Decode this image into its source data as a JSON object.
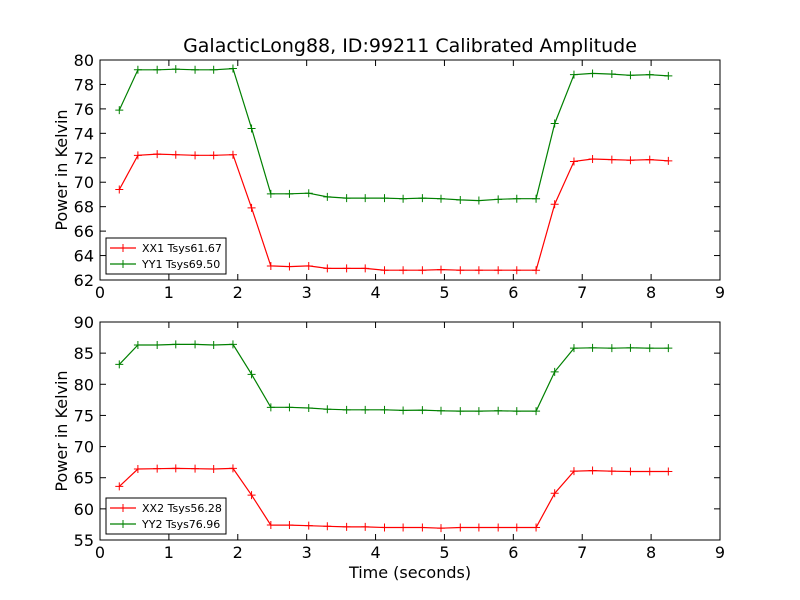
{
  "chart_data": [
    {
      "type": "line",
      "title": "GalacticLong88, ID:99211 Calibrated Amplitude",
      "xlabel": "",
      "ylabel": "Power in Kelvin",
      "xlim": [
        0,
        9
      ],
      "ylim": [
        62,
        80
      ],
      "xticks": [
        "0",
        "1",
        "2",
        "3",
        "4",
        "5",
        "6",
        "7",
        "8",
        "9"
      ],
      "yticks": [
        "62",
        "64",
        "66",
        "68",
        "70",
        "72",
        "74",
        "76",
        "78",
        "80"
      ],
      "legend_position": "lower-left",
      "grid": false,
      "x": [
        0.28,
        0.55,
        0.83,
        1.1,
        1.38,
        1.65,
        1.93,
        2.2,
        2.48,
        2.75,
        3.03,
        3.3,
        3.58,
        3.85,
        4.13,
        4.4,
        4.68,
        4.95,
        5.23,
        5.5,
        5.78,
        6.05,
        6.33,
        6.6,
        6.88,
        7.15,
        7.43,
        7.7,
        7.98,
        8.25
      ],
      "series": [
        {
          "name": "XX1 Tsys61.67",
          "color": "#ff0000",
          "values": [
            69.4,
            72.2,
            72.3,
            72.25,
            72.2,
            72.2,
            72.25,
            67.9,
            63.15,
            63.1,
            63.15,
            62.95,
            62.95,
            62.95,
            62.8,
            62.8,
            62.8,
            62.85,
            62.8,
            62.8,
            62.8,
            62.8,
            62.8,
            68.2,
            71.7,
            71.9,
            71.85,
            71.8,
            71.85,
            71.75
          ]
        },
        {
          "name": "YY1 Tsys69.50",
          "color": "#008000",
          "values": [
            75.9,
            79.2,
            79.2,
            79.25,
            79.2,
            79.2,
            79.3,
            74.4,
            69.05,
            69.05,
            69.1,
            68.8,
            68.7,
            68.7,
            68.7,
            68.65,
            68.7,
            68.65,
            68.55,
            68.5,
            68.6,
            68.65,
            68.65,
            74.8,
            78.8,
            78.9,
            78.85,
            78.75,
            78.8,
            78.7
          ]
        }
      ]
    },
    {
      "type": "line",
      "title": "",
      "xlabel": "Time (seconds)",
      "ylabel": "Power in Kelvin",
      "xlim": [
        0,
        9
      ],
      "ylim": [
        55,
        90
      ],
      "xticks": [
        "0",
        "1",
        "2",
        "3",
        "4",
        "5",
        "6",
        "7",
        "8",
        "9"
      ],
      "yticks": [
        "55",
        "60",
        "65",
        "70",
        "75",
        "80",
        "85",
        "90"
      ],
      "legend_position": "lower-left",
      "grid": false,
      "x": [
        0.28,
        0.55,
        0.83,
        1.1,
        1.38,
        1.65,
        1.93,
        2.2,
        2.48,
        2.75,
        3.03,
        3.3,
        3.58,
        3.85,
        4.13,
        4.4,
        4.68,
        4.95,
        5.23,
        5.5,
        5.78,
        6.05,
        6.33,
        6.6,
        6.88,
        7.15,
        7.43,
        7.7,
        7.98,
        8.25
      ],
      "series": [
        {
          "name": "XX2 Tsys56.28",
          "color": "#ff0000",
          "values": [
            63.6,
            66.4,
            66.45,
            66.5,
            66.45,
            66.4,
            66.5,
            62.2,
            57.4,
            57.4,
            57.3,
            57.2,
            57.1,
            57.1,
            57.0,
            57.0,
            57.0,
            56.9,
            57.0,
            57.0,
            57.0,
            57.0,
            57.0,
            62.5,
            66.05,
            66.15,
            66.05,
            66.0,
            66.0,
            66.0
          ]
        },
        {
          "name": "YY2 Tsys76.96",
          "color": "#008000",
          "values": [
            83.2,
            86.3,
            86.3,
            86.4,
            86.4,
            86.3,
            86.4,
            81.6,
            76.3,
            76.3,
            76.2,
            76.0,
            75.9,
            75.9,
            75.9,
            75.8,
            75.85,
            75.75,
            75.7,
            75.7,
            75.75,
            75.7,
            75.7,
            82.0,
            85.8,
            85.85,
            85.8,
            85.85,
            85.8,
            85.8
          ]
        }
      ]
    }
  ]
}
